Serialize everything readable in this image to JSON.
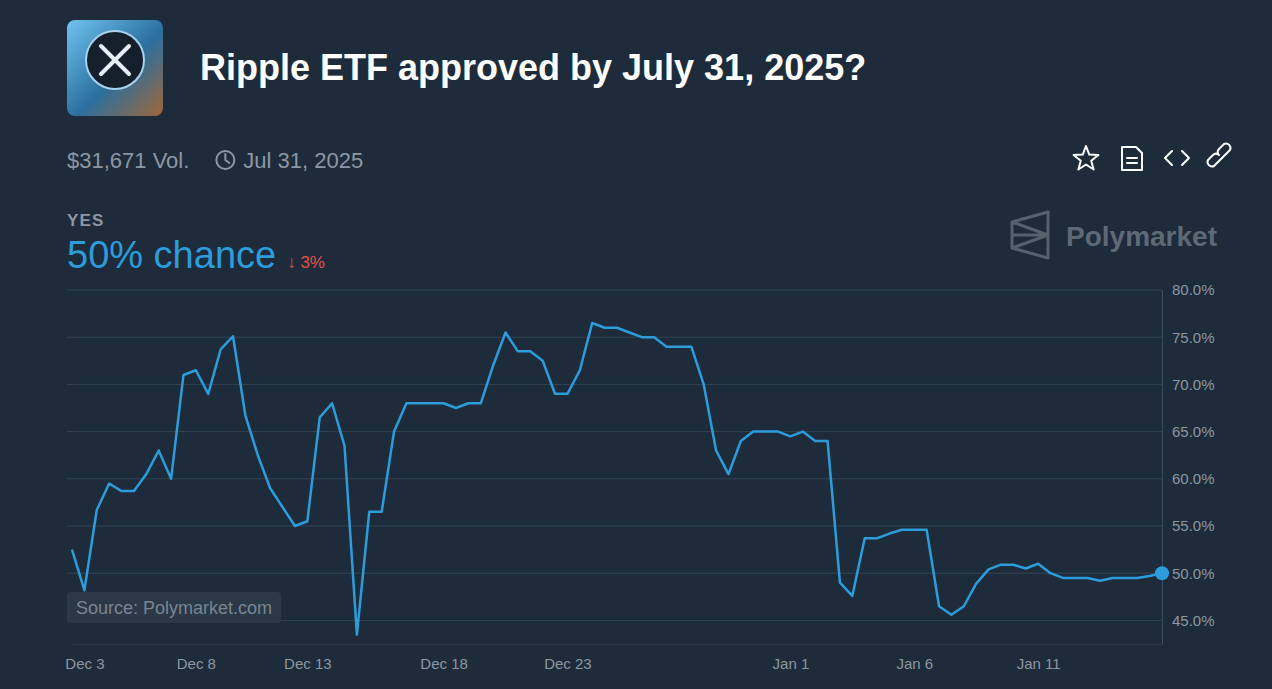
{
  "chart_data": {
    "type": "line",
    "title": "Ripple ETF approved by July 31, 2025?",
    "annotations": [
      "$31,671 Vol.",
      "Jul 31, 2025",
      "YES",
      "50% chance",
      "↓ 3%",
      "Polymarket",
      "Source: Polymarket.com"
    ],
    "categories": [
      null,
      "Dec 3",
      null,
      null,
      null,
      null,
      null,
      null,
      null,
      null,
      "Dec 8",
      null,
      null,
      null,
      null,
      null,
      null,
      null,
      null,
      "Dec 13",
      null,
      null,
      null,
      null,
      null,
      null,
      null,
      null,
      null,
      null,
      "Dec 18",
      null,
      null,
      null,
      null,
      null,
      null,
      null,
      null,
      null,
      "Dec 23",
      null,
      null,
      null,
      null,
      null,
      null,
      null,
      null,
      null,
      null,
      null,
      null,
      null,
      null,
      null,
      null,
      null,
      "Jan 1",
      null,
      null,
      null,
      null,
      null,
      null,
      null,
      null,
      null,
      "Jan 6",
      null,
      null,
      null,
      null,
      null,
      null,
      null,
      null,
      null,
      "Jan 11",
      null,
      null,
      null,
      null,
      null,
      null,
      null,
      null,
      null,
      null
    ],
    "series": [
      {
        "color": "#2d9cdb",
        "values": [
          52.5,
          48.2,
          56.7,
          59.5,
          58.7,
          58.7,
          60.5,
          63,
          60,
          71,
          71.5,
          69,
          73.7,
          75.1,
          66.7,
          62.5,
          59,
          57,
          55,
          55.5,
          66.5,
          68,
          63.5,
          43.5,
          56.5,
          56.5,
          65,
          68,
          68,
          68,
          68,
          67.5,
          68,
          68,
          72,
          75.5,
          73.5,
          73.5,
          72.5,
          69,
          69,
          71.5,
          76.5,
          76,
          76,
          75.5,
          75,
          75,
          74,
          74,
          74,
          70,
          63,
          60.5,
          64,
          65,
          65,
          65,
          64.5,
          65,
          64,
          64,
          49,
          47.6,
          53.7,
          53.7,
          54.2,
          54.6,
          54.6,
          54.6,
          46.5,
          45.6,
          46.5,
          48.9,
          50.4,
          50.9,
          50.9,
          50.5,
          51,
          50,
          49.5,
          49.5,
          49.5,
          49.2,
          49.5,
          49.5,
          49.5,
          49.7,
          50
        ]
      }
    ],
    "ylim": [
      42.5,
      80
    ],
    "yticks": [
      {
        "value": 45,
        "label": "45.0%"
      },
      {
        "value": 50,
        "label": "50.0%"
      },
      {
        "value": 55,
        "label": "55.0%"
      },
      {
        "value": 60,
        "label": "60.0%"
      },
      {
        "value": 65,
        "label": "65.0%"
      },
      {
        "value": 70,
        "label": "70.0%"
      },
      {
        "value": 75,
        "label": "75.0%"
      },
      {
        "value": 80,
        "label": "80.0%"
      }
    ],
    "grid": true
  }
}
